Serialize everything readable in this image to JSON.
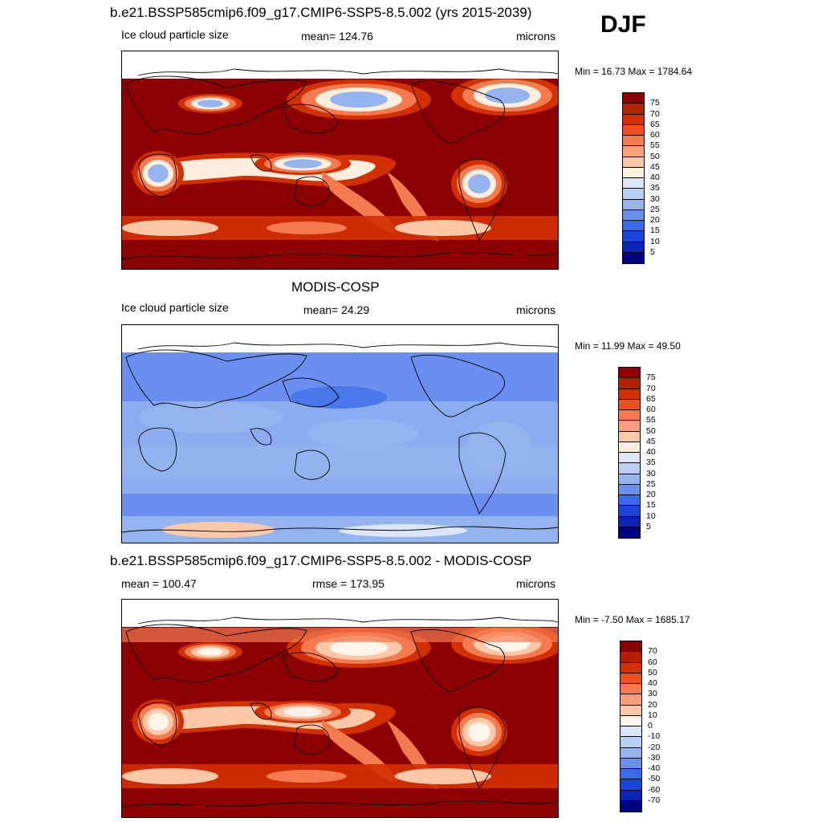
{
  "season": "DJF",
  "panels": [
    {
      "id": "model",
      "title": "b.e21.BSSP585cmip6.f09_g17.CMIP6-SSP5-8.5.002 (yrs 2015-2039)",
      "left_label": "Ice cloud particle size",
      "center_label": "mean= 124.76",
      "right_label": "microns",
      "minmax": "Min =  16.73 Max = 1784.64",
      "field": "model",
      "colorbar": {
        "labels": [
          "75",
          "70",
          "65",
          "60",
          "55",
          "50",
          "45",
          "40",
          "35",
          "30",
          "25",
          "20",
          "15",
          "10",
          "5"
        ],
        "colors": [
          "#8b0000",
          "#b22000",
          "#d33000",
          "#f05020",
          "#f47a50",
          "#f9a07a",
          "#fcc8a8",
          "#fdeedd",
          "#dbe7f8",
          "#b9d0f5",
          "#94b4f0",
          "#6890ec",
          "#3a6ae6",
          "#1a45dc",
          "#0a25b5",
          "#000080"
        ]
      }
    },
    {
      "id": "obs",
      "title": "MODIS-COSP",
      "left_label": "Ice cloud particle size",
      "center_label": "mean=  24.29",
      "right_label": "microns",
      "minmax": "Min =  11.99 Max =  49.50",
      "field": "obs",
      "colorbar": {
        "labels": [
          "75",
          "70",
          "65",
          "60",
          "55",
          "50",
          "45",
          "40",
          "35",
          "30",
          "25",
          "20",
          "15",
          "10",
          "5"
        ],
        "colors": [
          "#8b0000",
          "#b22000",
          "#d33000",
          "#f05020",
          "#f47a50",
          "#f9a07a",
          "#fcc8a8",
          "#fdeedd",
          "#dbe7f8",
          "#b9d0f5",
          "#94b4f0",
          "#6890ec",
          "#3a6ae6",
          "#1a45dc",
          "#0a25b5",
          "#000080"
        ]
      }
    },
    {
      "id": "diff",
      "title": "b.e21.BSSP585cmip6.f09_g17.CMIP6-SSP5-8.5.002 - MODIS-COSP",
      "left_label": "mean = 100.47",
      "center_label": "rmse = 173.95",
      "right_label": "microns",
      "minmax": "Min =  -7.50 Max = 1685.17",
      "field": "diff",
      "colorbar": {
        "labels": [
          "70",
          "60",
          "50",
          "40",
          "30",
          "20",
          "10",
          "0",
          "-10",
          "-20",
          "-30",
          "-40",
          "-50",
          "-60",
          "-70"
        ],
        "colors": [
          "#8b0000",
          "#b22000",
          "#d33000",
          "#f05020",
          "#f47a50",
          "#f9a07a",
          "#fcc8a8",
          "#fef4ea",
          "#dbe7f8",
          "#b9d0f5",
          "#94b4f0",
          "#6890ec",
          "#3a6ae6",
          "#1a45dc",
          "#0a25b5",
          "#000080"
        ]
      }
    }
  ]
}
